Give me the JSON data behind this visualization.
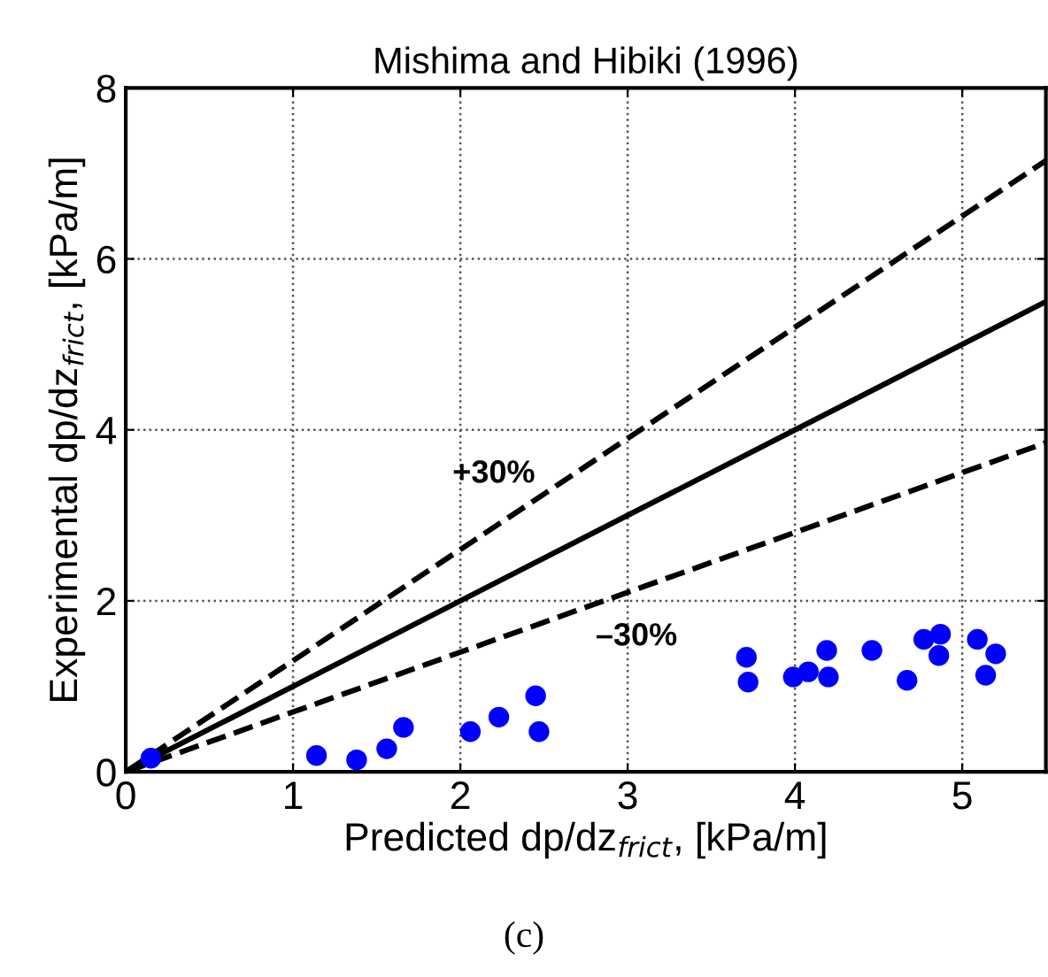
{
  "chart_data": {
    "type": "scatter",
    "title": "Mishima and Hibiki (1996)",
    "xlabel": "Predicted dp/dz$_{frict}$, [kPa/m]",
    "ylabel": "Experimental dp/dz$_{frict}$, [kPa/m]",
    "xlim": [
      0,
      5.5
    ],
    "ylim": [
      0,
      8
    ],
    "xticks": [
      0,
      1,
      2,
      3,
      4,
      5
    ],
    "yticks": [
      0,
      2,
      4,
      6,
      8
    ],
    "grid": true,
    "legend": false,
    "series": [
      {
        "type": "line",
        "color": "#000000",
        "line_style": "solid",
        "marker": "none",
        "x": [
          0,
          5.5
        ],
        "values": [
          0,
          5.5
        ]
      },
      {
        "type": "line",
        "color": "#000000",
        "line_style": "dashed",
        "marker": "none",
        "x": [
          0,
          5.5
        ],
        "values": [
          0,
          7.15
        ]
      },
      {
        "type": "line",
        "color": "#000000",
        "line_style": "dashed",
        "marker": "none",
        "x": [
          0,
          5.5
        ],
        "values": [
          0,
          3.85
        ]
      },
      {
        "color": "#0000ff",
        "marker": "circle",
        "x": [
          0.15,
          1.14,
          1.38,
          1.56,
          1.66,
          2.06,
          2.23,
          2.45,
          2.47,
          3.71,
          3.72,
          3.99,
          4.08,
          4.19,
          4.2,
          4.46,
          4.67,
          4.77,
          4.87,
          4.86,
          5.09,
          5.2,
          5.14
        ],
        "values": [
          0.16,
          0.19,
          0.14,
          0.27,
          0.52,
          0.47,
          0.64,
          0.89,
          0.47,
          1.34,
          1.05,
          1.11,
          1.17,
          1.42,
          1.11,
          1.42,
          1.07,
          1.55,
          1.61,
          1.36,
          1.55,
          1.38,
          1.13
        ]
      }
    ],
    "annotations": [
      "+30%",
      "–30%",
      "(c)"
    ]
  }
}
